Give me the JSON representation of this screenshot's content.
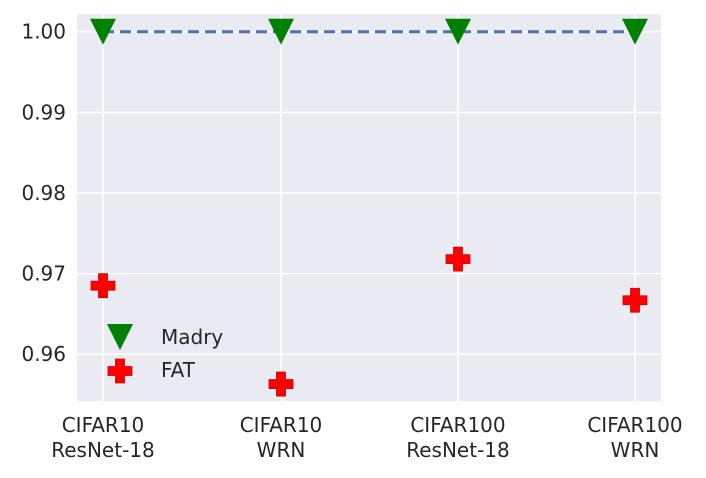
{
  "chart_data": {
    "type": "scatter",
    "title": "",
    "xlabel": "",
    "ylabel": "",
    "categories": [
      "CIFAR10\nResNet-18",
      "CIFAR10\nWRN",
      "CIFAR100\nResNet-18",
      "CIFAR100\nWRN"
    ],
    "category_lines": [
      [
        "CIFAR10",
        "ResNet-18"
      ],
      [
        "CIFAR10",
        "WRN"
      ],
      [
        "CIFAR100",
        "ResNet-18"
      ],
      [
        "CIFAR100",
        "WRN"
      ]
    ],
    "yticks": [
      0.96,
      0.97,
      0.98,
      0.99,
      1.0
    ],
    "ytick_labels": [
      "0.96",
      "0.97",
      "0.98",
      "0.99",
      "1.00"
    ],
    "ylim": [
      0.9542,
      1.0022
    ],
    "grid": true,
    "legend_position": "lower left",
    "series": [
      {
        "name": "Madry",
        "marker": "triangle-down",
        "color": "#008000",
        "values": [
          1.0,
          1.0,
          1.0,
          1.0
        ],
        "line": "dashed",
        "line_color": "#4c72b0"
      },
      {
        "name": "FAT",
        "marker": "plus",
        "color": "#ff0000",
        "values": [
          0.9685,
          0.9563,
          0.9718,
          0.9667
        ]
      }
    ]
  },
  "colors": {
    "background": "#eaeaf2",
    "grid": "#ffffff",
    "madry": "#008000",
    "fat": "#ff0000",
    "reference_line": "#4c72b0"
  }
}
